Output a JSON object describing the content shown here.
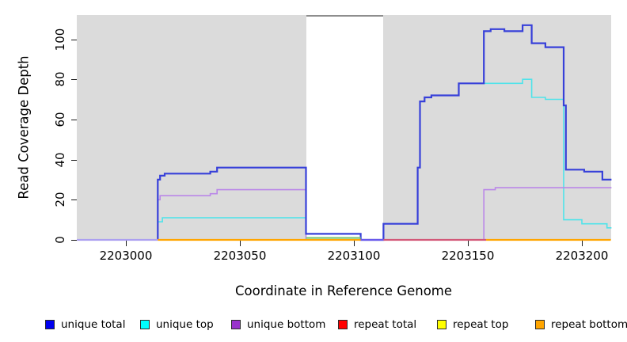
{
  "chart_data": {
    "type": "line",
    "title": "",
    "xlabel": "Coordinate in Reference Genome",
    "ylabel": "Read Coverage Depth",
    "x_ticks": [
      2203000,
      2203050,
      2203100,
      2203150,
      2203200
    ],
    "y_ticks": [
      0,
      20,
      40,
      60,
      80,
      100
    ],
    "xlim": [
      2202978.5,
      2203212.7
    ],
    "ylim": [
      0,
      112
    ],
    "grid": "off",
    "plot_bg": "#DBDBDB",
    "masked_region": {
      "from": 2203079,
      "to": 2203113,
      "color": "#FFFFFF",
      "top_border": "#8E8E8E"
    },
    "series": [
      {
        "name": "unique top",
        "color": "#4FE3EA",
        "width": 1.6,
        "steps": [
          [
            2203014,
            0
          ],
          [
            2203014,
            9
          ],
          [
            2203016,
            11
          ],
          [
            2203079,
            3
          ],
          [
            2203103,
            0
          ],
          [
            2203113,
            8
          ],
          [
            2203128,
            36
          ],
          [
            2203129,
            69
          ],
          [
            2203131,
            71
          ],
          [
            2203134,
            72
          ],
          [
            2203146,
            78
          ],
          [
            2203174,
            80
          ],
          [
            2203178,
            71
          ],
          [
            2203184,
            70
          ],
          [
            2203192,
            10
          ],
          [
            2203200,
            8
          ],
          [
            2203211,
            6
          ],
          [
            2203213,
            6
          ]
        ]
      },
      {
        "name": "unique bottom",
        "color": "#BA87E8",
        "width": 1.6,
        "steps": [
          [
            2203014,
            0
          ],
          [
            2203014,
            20
          ],
          [
            2203015,
            22
          ],
          [
            2203037,
            23
          ],
          [
            2203040,
            25
          ],
          [
            2203079,
            0
          ],
          [
            2203157,
            25
          ],
          [
            2203162,
            26
          ],
          [
            2203213,
            26
          ]
        ]
      },
      {
        "name": "unique total",
        "color": "#3740D9",
        "width": 2.2,
        "steps": [
          [
            2203014,
            0
          ],
          [
            2203014,
            30
          ],
          [
            2203015,
            32
          ],
          [
            2203017,
            33
          ],
          [
            2203037,
            34
          ],
          [
            2203040,
            36
          ],
          [
            2203079,
            3
          ],
          [
            2203103,
            0
          ],
          [
            2203113,
            8
          ],
          [
            2203128,
            36
          ],
          [
            2203129,
            69
          ],
          [
            2203131,
            71
          ],
          [
            2203134,
            72
          ],
          [
            2203146,
            78
          ],
          [
            2203157,
            104
          ],
          [
            2203160,
            105
          ],
          [
            2203166,
            104
          ],
          [
            2203174,
            107
          ],
          [
            2203178,
            98
          ],
          [
            2203184,
            96
          ],
          [
            2203192,
            67
          ],
          [
            2203193,
            35
          ],
          [
            2203201,
            34
          ],
          [
            2203209,
            30
          ],
          [
            2203213,
            30
          ]
        ]
      }
    ],
    "baseline_segments": [
      {
        "from": 2202978.5,
        "to": 2203014,
        "value": 0,
        "color": "#ACA0F0"
      },
      {
        "from": 2203014,
        "to": 2203103,
        "value": 0,
        "color": "#FFA500"
      },
      {
        "from": 2203079,
        "to": 2203103,
        "value": 1,
        "color": "#7CC87C"
      },
      {
        "from": 2203103,
        "to": 2203113,
        "value": 0,
        "color": "#6A5AEB"
      },
      {
        "from": 2203113,
        "to": 2203158,
        "value": 0,
        "color": "#D25878"
      },
      {
        "from": 2203158,
        "to": 2203212.7,
        "value": 0,
        "color": "#FFA500"
      }
    ],
    "legend": {
      "position": "bottom",
      "items": [
        {
          "label": "unique total",
          "color": "#0000F0"
        },
        {
          "label": "unique top",
          "color": "#00FFFF"
        },
        {
          "label": "unique bottom",
          "color": "#9932CC"
        },
        {
          "label": "repeat total",
          "color": "#FF0000"
        },
        {
          "label": "repeat top",
          "color": "#FFFF00"
        },
        {
          "label": "repeat bottom",
          "color": "#FFA500"
        }
      ]
    }
  }
}
